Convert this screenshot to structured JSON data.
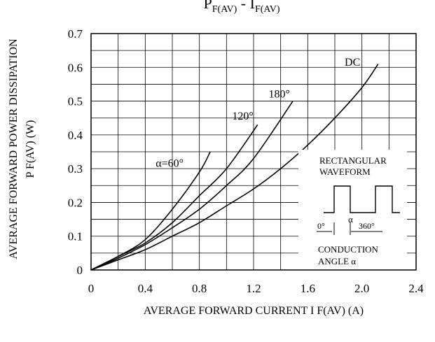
{
  "title": "P F(AV) - I F(AV)",
  "chart_data": {
    "type": "line",
    "xlabel": "AVERAGE FORWARD CURRENT I F(AV) (A)",
    "ylabel_line1": "AVERAGE FORWARD POWER DISSIPATION",
    "ylabel_line2": "P F(AV) (W)",
    "xlim": [
      0,
      2.4
    ],
    "ylim": [
      0,
      0.7
    ],
    "x_ticks": [
      0,
      0.4,
      0.8,
      1.2,
      1.6,
      2.0,
      2.4
    ],
    "x_tick_labels": [
      "0",
      "0.4",
      "0.8",
      "1.2",
      "1.6",
      "2.0",
      "2.4"
    ],
    "y_ticks": [
      0,
      0.1,
      0.2,
      0.3,
      0.4,
      0.5,
      0.6,
      0.7
    ],
    "y_tick_labels": [
      "0",
      "0.1",
      "0.2",
      "0.3",
      "0.4",
      "0.5",
      "0.6",
      "0.7"
    ],
    "grid": true,
    "minor_grid": true,
    "series": [
      {
        "name": "α=60°",
        "x": [
          0,
          0.2,
          0.4,
          0.6,
          0.8,
          0.88
        ],
        "y": [
          0,
          0.04,
          0.09,
          0.18,
          0.29,
          0.35
        ]
      },
      {
        "name": "120°",
        "x": [
          0,
          0.2,
          0.4,
          0.6,
          0.8,
          1.0,
          1.23
        ],
        "y": [
          0,
          0.04,
          0.08,
          0.14,
          0.22,
          0.3,
          0.43
        ]
      },
      {
        "name": "180°",
        "x": [
          0,
          0.2,
          0.4,
          0.6,
          0.8,
          1.0,
          1.2,
          1.49
        ],
        "y": [
          0,
          0.035,
          0.075,
          0.125,
          0.18,
          0.25,
          0.33,
          0.5
        ]
      },
      {
        "name": "DC",
        "x": [
          0,
          0.2,
          0.4,
          0.6,
          0.8,
          1.0,
          1.2,
          1.4,
          1.6,
          1.8,
          2.0,
          2.12
        ],
        "y": [
          0,
          0.03,
          0.06,
          0.1,
          0.14,
          0.19,
          0.24,
          0.3,
          0.37,
          0.45,
          0.54,
          0.61
        ]
      }
    ],
    "inset": {
      "title_line1": "RECTANGULAR",
      "title_line2": "WAVEFORM",
      "alpha": "α",
      "zero": "0°",
      "full": "360°",
      "caption_line1": "CONDUCTION",
      "caption_line2": "ANGLE α"
    }
  }
}
